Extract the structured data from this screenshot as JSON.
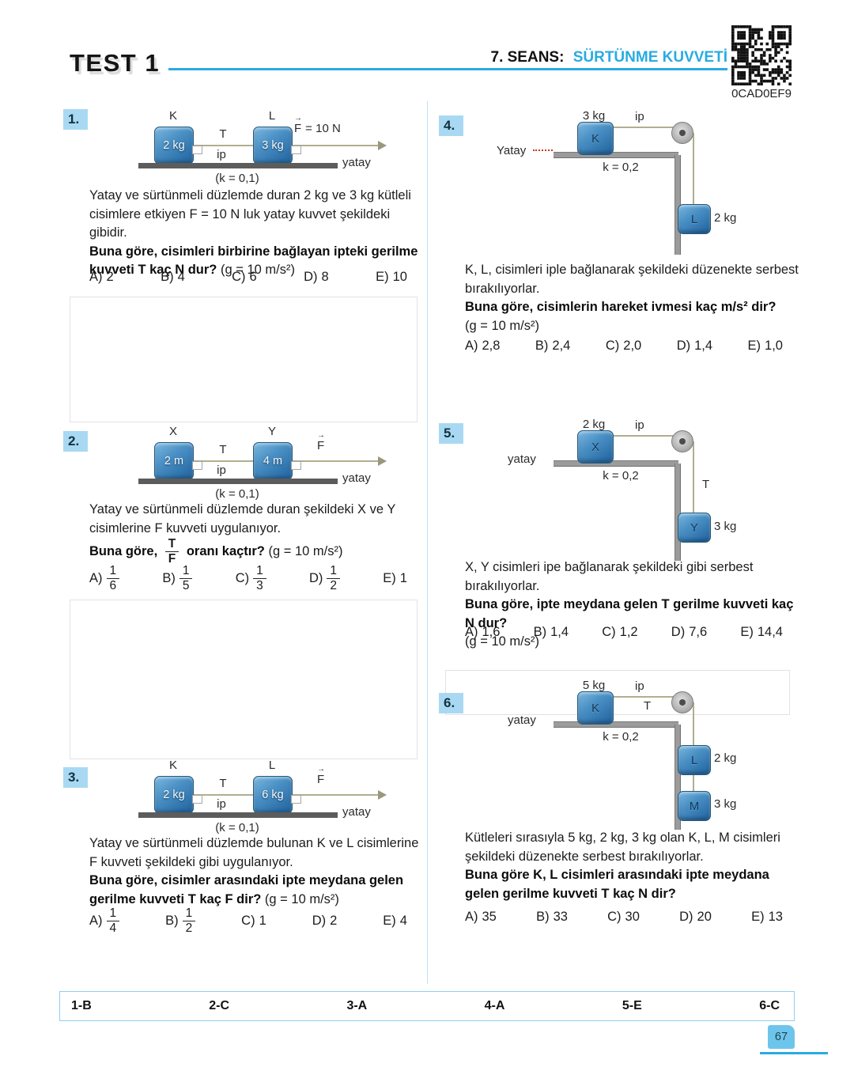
{
  "header": {
    "test_title": "TEST 1",
    "session_label": "7. SEANS:",
    "session_topic": "SÜRTÜNME KUVVETİ",
    "qr_caption": "0CAD0EF9"
  },
  "questions": [
    {
      "number": "1.",
      "diagram": {
        "b1name": "K",
        "b2name": "L",
        "b1mass": "2 kg",
        "b2mass": "3 kg",
        "tension": "T",
        "rope": "ip",
        "force_name": "F",
        "force_value": "= 10 N",
        "surface": "yatay",
        "friction": "(k = 0,1)"
      },
      "text": "Yatay ve sürtünmeli düzlemde duran 2 kg ve 3 kg kütleli cisimlere etkiyen F = 10 N luk yatay kuvvet şekildeki gibidir.",
      "bold": "Buna göre, cisimleri birbirine bağlayan ipteki gerilme kuvveti T kaç N dur?",
      "g_note": "(g = 10 m/s²)",
      "choices": [
        {
          "label": "A)",
          "value": "2"
        },
        {
          "label": "B)",
          "value": "4"
        },
        {
          "label": "C)",
          "value": "6"
        },
        {
          "label": "D)",
          "value": "8"
        },
        {
          "label": "E)",
          "value": "10"
        }
      ]
    },
    {
      "number": "2.",
      "diagram": {
        "b1name": "X",
        "b2name": "Y",
        "b1mass": "2 m",
        "b2mass": "4 m",
        "tension": "T",
        "rope": "ip",
        "force_name": "F",
        "force_value": "",
        "surface": "yatay",
        "friction": "(k = 0,1)"
      },
      "text": "Yatay ve sürtünmeli düzlemde duran şekildeki X ve Y cisimlerine F kuvveti uygulanıyor.",
      "bold_prefix": "Buna göre,",
      "bold_frac_num": "T",
      "bold_frac_den": "F",
      "bold_suffix": "oranı kaçtır?",
      "g_note": "(g = 10 m/s²)",
      "choices": [
        {
          "label": "A)",
          "num": "1",
          "den": "6"
        },
        {
          "label": "B)",
          "num": "1",
          "den": "5"
        },
        {
          "label": "C)",
          "num": "1",
          "den": "3"
        },
        {
          "label": "D)",
          "num": "1",
          "den": "2"
        },
        {
          "label": "E)",
          "value": "1"
        }
      ]
    },
    {
      "number": "3.",
      "diagram": {
        "b1name": "K",
        "b2name": "L",
        "b1mass": "2 kg",
        "b2mass": "6 kg",
        "tension": "T",
        "rope": "ip",
        "force_name": "F",
        "force_value": "",
        "surface": "yatay",
        "friction": "(k = 0,1)"
      },
      "text": "Yatay ve sürtünmeli düzlemde bulunan K ve L cisimlerine F kuvveti şekildeki gibi uygulanıyor.",
      "bold": "Buna göre, cisimler arasındaki ipte meydana gelen gerilme kuvveti T kaç F dir?",
      "g_note": "(g = 10 m/s²)",
      "choices": [
        {
          "label": "A)",
          "num": "1",
          "den": "4"
        },
        {
          "label": "B)",
          "num": "1",
          "den": "2"
        },
        {
          "label": "C)",
          "value": "1"
        },
        {
          "label": "D)",
          "value": "2"
        },
        {
          "label": "E)",
          "value": "4"
        }
      ]
    },
    {
      "number": "4.",
      "diagram": {
        "top_mass": "3 kg",
        "block_letter": "K",
        "rope": "ip",
        "surface": "Yatay",
        "friction": "k = 0,2",
        "hang1_letter": "L",
        "hang1_mass": "2 kg"
      },
      "text": "K, L, cisimleri iple bağlanarak şekildeki düzenekte serbest bırakılıyorlar.",
      "bold": "Buna göre, cisimlerin hareket ivmesi kaç m/s² dir?",
      "g_note": "(g = 10 m/s²)",
      "choices": [
        {
          "label": "A)",
          "value": "2,8"
        },
        {
          "label": "B)",
          "value": "2,4"
        },
        {
          "label": "C)",
          "value": "2,0"
        },
        {
          "label": "D)",
          "value": "1,4"
        },
        {
          "label": "E)",
          "value": "1,0"
        }
      ]
    },
    {
      "number": "5.",
      "diagram": {
        "top_mass": "2 kg",
        "block_letter": "X",
        "rope": "ip",
        "tension": "T",
        "surface": "yatay",
        "friction": "k = 0,2",
        "hang1_letter": "Y",
        "hang1_mass": "3 kg"
      },
      "text": "X, Y cisimleri ipe bağlanarak şekildeki gibi serbest bırakılıyorlar.",
      "bold": "Buna göre, ipte meydana gelen T gerilme kuvveti kaç N dur?",
      "g_note": "(g = 10 m/s²)",
      "choices": [
        {
          "label": "A)",
          "value": "1,6"
        },
        {
          "label": "B)",
          "value": "1,4"
        },
        {
          "label": "C)",
          "value": "1,2"
        },
        {
          "label": "D)",
          "value": "7,6"
        },
        {
          "label": "E)",
          "value": "14,4"
        }
      ]
    },
    {
      "number": "6.",
      "diagram": {
        "top_mass": "5 kg",
        "block_letter": "K",
        "rope": "ip",
        "tension": "T",
        "surface": "yatay",
        "friction": "k = 0,2",
        "hang1_letter": "L",
        "hang1_mass": "2 kg",
        "hang2_letter": "M",
        "hang2_mass": "3 kg"
      },
      "text": "Kütleleri sırasıyla 5 kg, 2 kg, 3 kg olan K, L, M cisimleri şekildeki düzenekte serbest bırakılıyorlar.",
      "bold": "Buna göre K, L cisimleri arasındaki ipte meydana gelen gerilme kuvveti T kaç N dir?",
      "choices": [
        {
          "label": "A)",
          "value": "35"
        },
        {
          "label": "B)",
          "value": "33"
        },
        {
          "label": "C)",
          "value": "30"
        },
        {
          "label": "D)",
          "value": "20"
        },
        {
          "label": "E)",
          "value": "13"
        }
      ]
    }
  ],
  "answer_key": [
    "1-B",
    "2-C",
    "3-A",
    "4-A",
    "5-E",
    "6-C"
  ],
  "page_number": "67"
}
